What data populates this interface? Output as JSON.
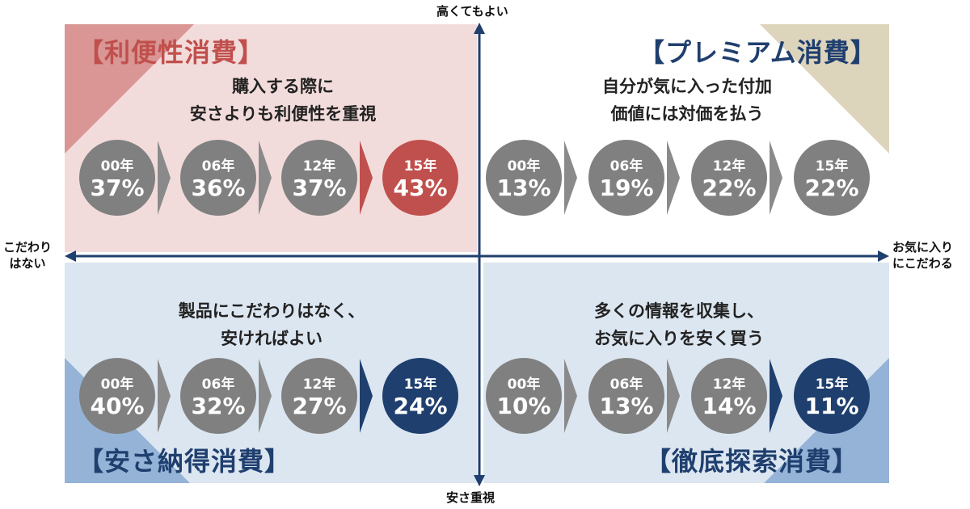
{
  "axes": {
    "top": "高くてもよい",
    "bottom": "安さ重視",
    "left": [
      "こだわり",
      "はない"
    ],
    "right": [
      "お気に入り",
      "にこだわる"
    ]
  },
  "colors": {
    "red": "#c0504d",
    "navy": "#1f3f6e",
    "gray": "#808080",
    "pink_bg": "#f2dcdb",
    "blue_bg": "#dce6f1",
    "tan": "#ddd4bc"
  },
  "quadrants": [
    {
      "title": "【利便性消費】",
      "desc": [
        "購入する際に",
        "安さよりも利便性を重視"
      ],
      "items": [
        {
          "year": "00年",
          "value": "37%"
        },
        {
          "year": "06年",
          "value": "36%"
        },
        {
          "year": "12年",
          "value": "37%"
        },
        {
          "year": "15年",
          "value": "43%"
        }
      ]
    },
    {
      "title": "【プレミアム消費】",
      "desc": [
        "自分が気に入った付加",
        "価値には対価を払う"
      ],
      "items": [
        {
          "year": "00年",
          "value": "13%"
        },
        {
          "year": "06年",
          "value": "19%"
        },
        {
          "year": "12年",
          "value": "22%"
        },
        {
          "year": "15年",
          "value": "22%"
        }
      ]
    },
    {
      "title": "【安さ納得消費】",
      "desc": [
        "製品にこだわりはなく、",
        "安ければよい"
      ],
      "items": [
        {
          "year": "00年",
          "value": "40%"
        },
        {
          "year": "06年",
          "value": "32%"
        },
        {
          "year": "12年",
          "value": "27%"
        },
        {
          "year": "15年",
          "value": "24%"
        }
      ]
    },
    {
      "title": "【徹底探索消費】",
      "desc": [
        "多くの情報を収集し、",
        "お気に入りを安く買う"
      ],
      "items": [
        {
          "year": "00年",
          "value": "10%"
        },
        {
          "year": "06年",
          "value": "13%"
        },
        {
          "year": "12年",
          "value": "14%"
        },
        {
          "year": "15年",
          "value": "11%"
        }
      ]
    }
  ]
}
